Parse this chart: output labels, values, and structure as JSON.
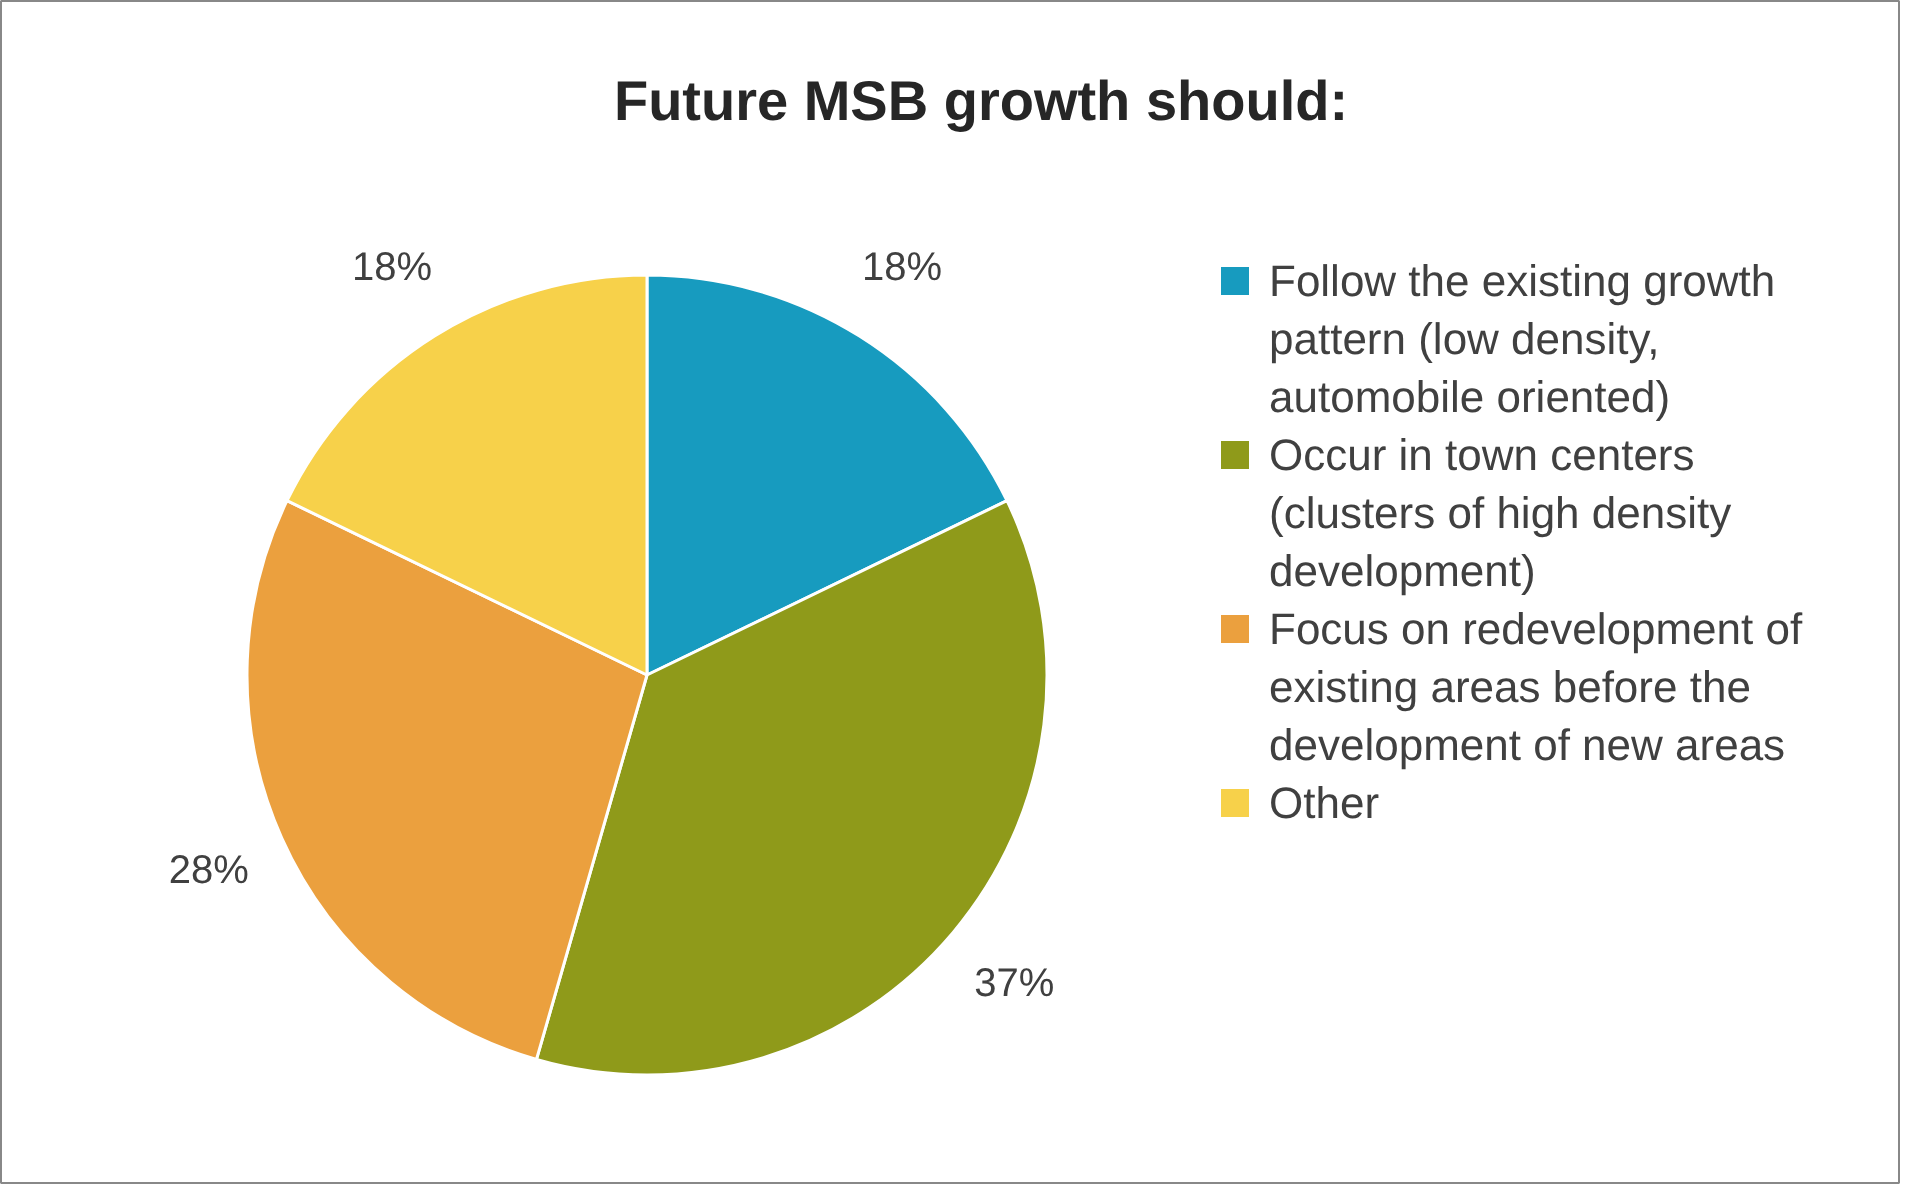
{
  "chart_data": {
    "type": "pie",
    "title": "Future MSB growth should:",
    "categories": [
      "Follow the existing growth pattern (low density, automobile oriented)",
      "Occur in town centers (clusters of high density development)",
      "Focus on redevelopment of existing areas before the development of new areas",
      "Other"
    ],
    "values": [
      18,
      37,
      28,
      18
    ],
    "value_labels": [
      "18%",
      "37%",
      "28%",
      "18%"
    ],
    "colors": [
      "#179bbf",
      "#8f9a1a",
      "#eba03e",
      "#f7d14a"
    ],
    "legend": "right"
  }
}
